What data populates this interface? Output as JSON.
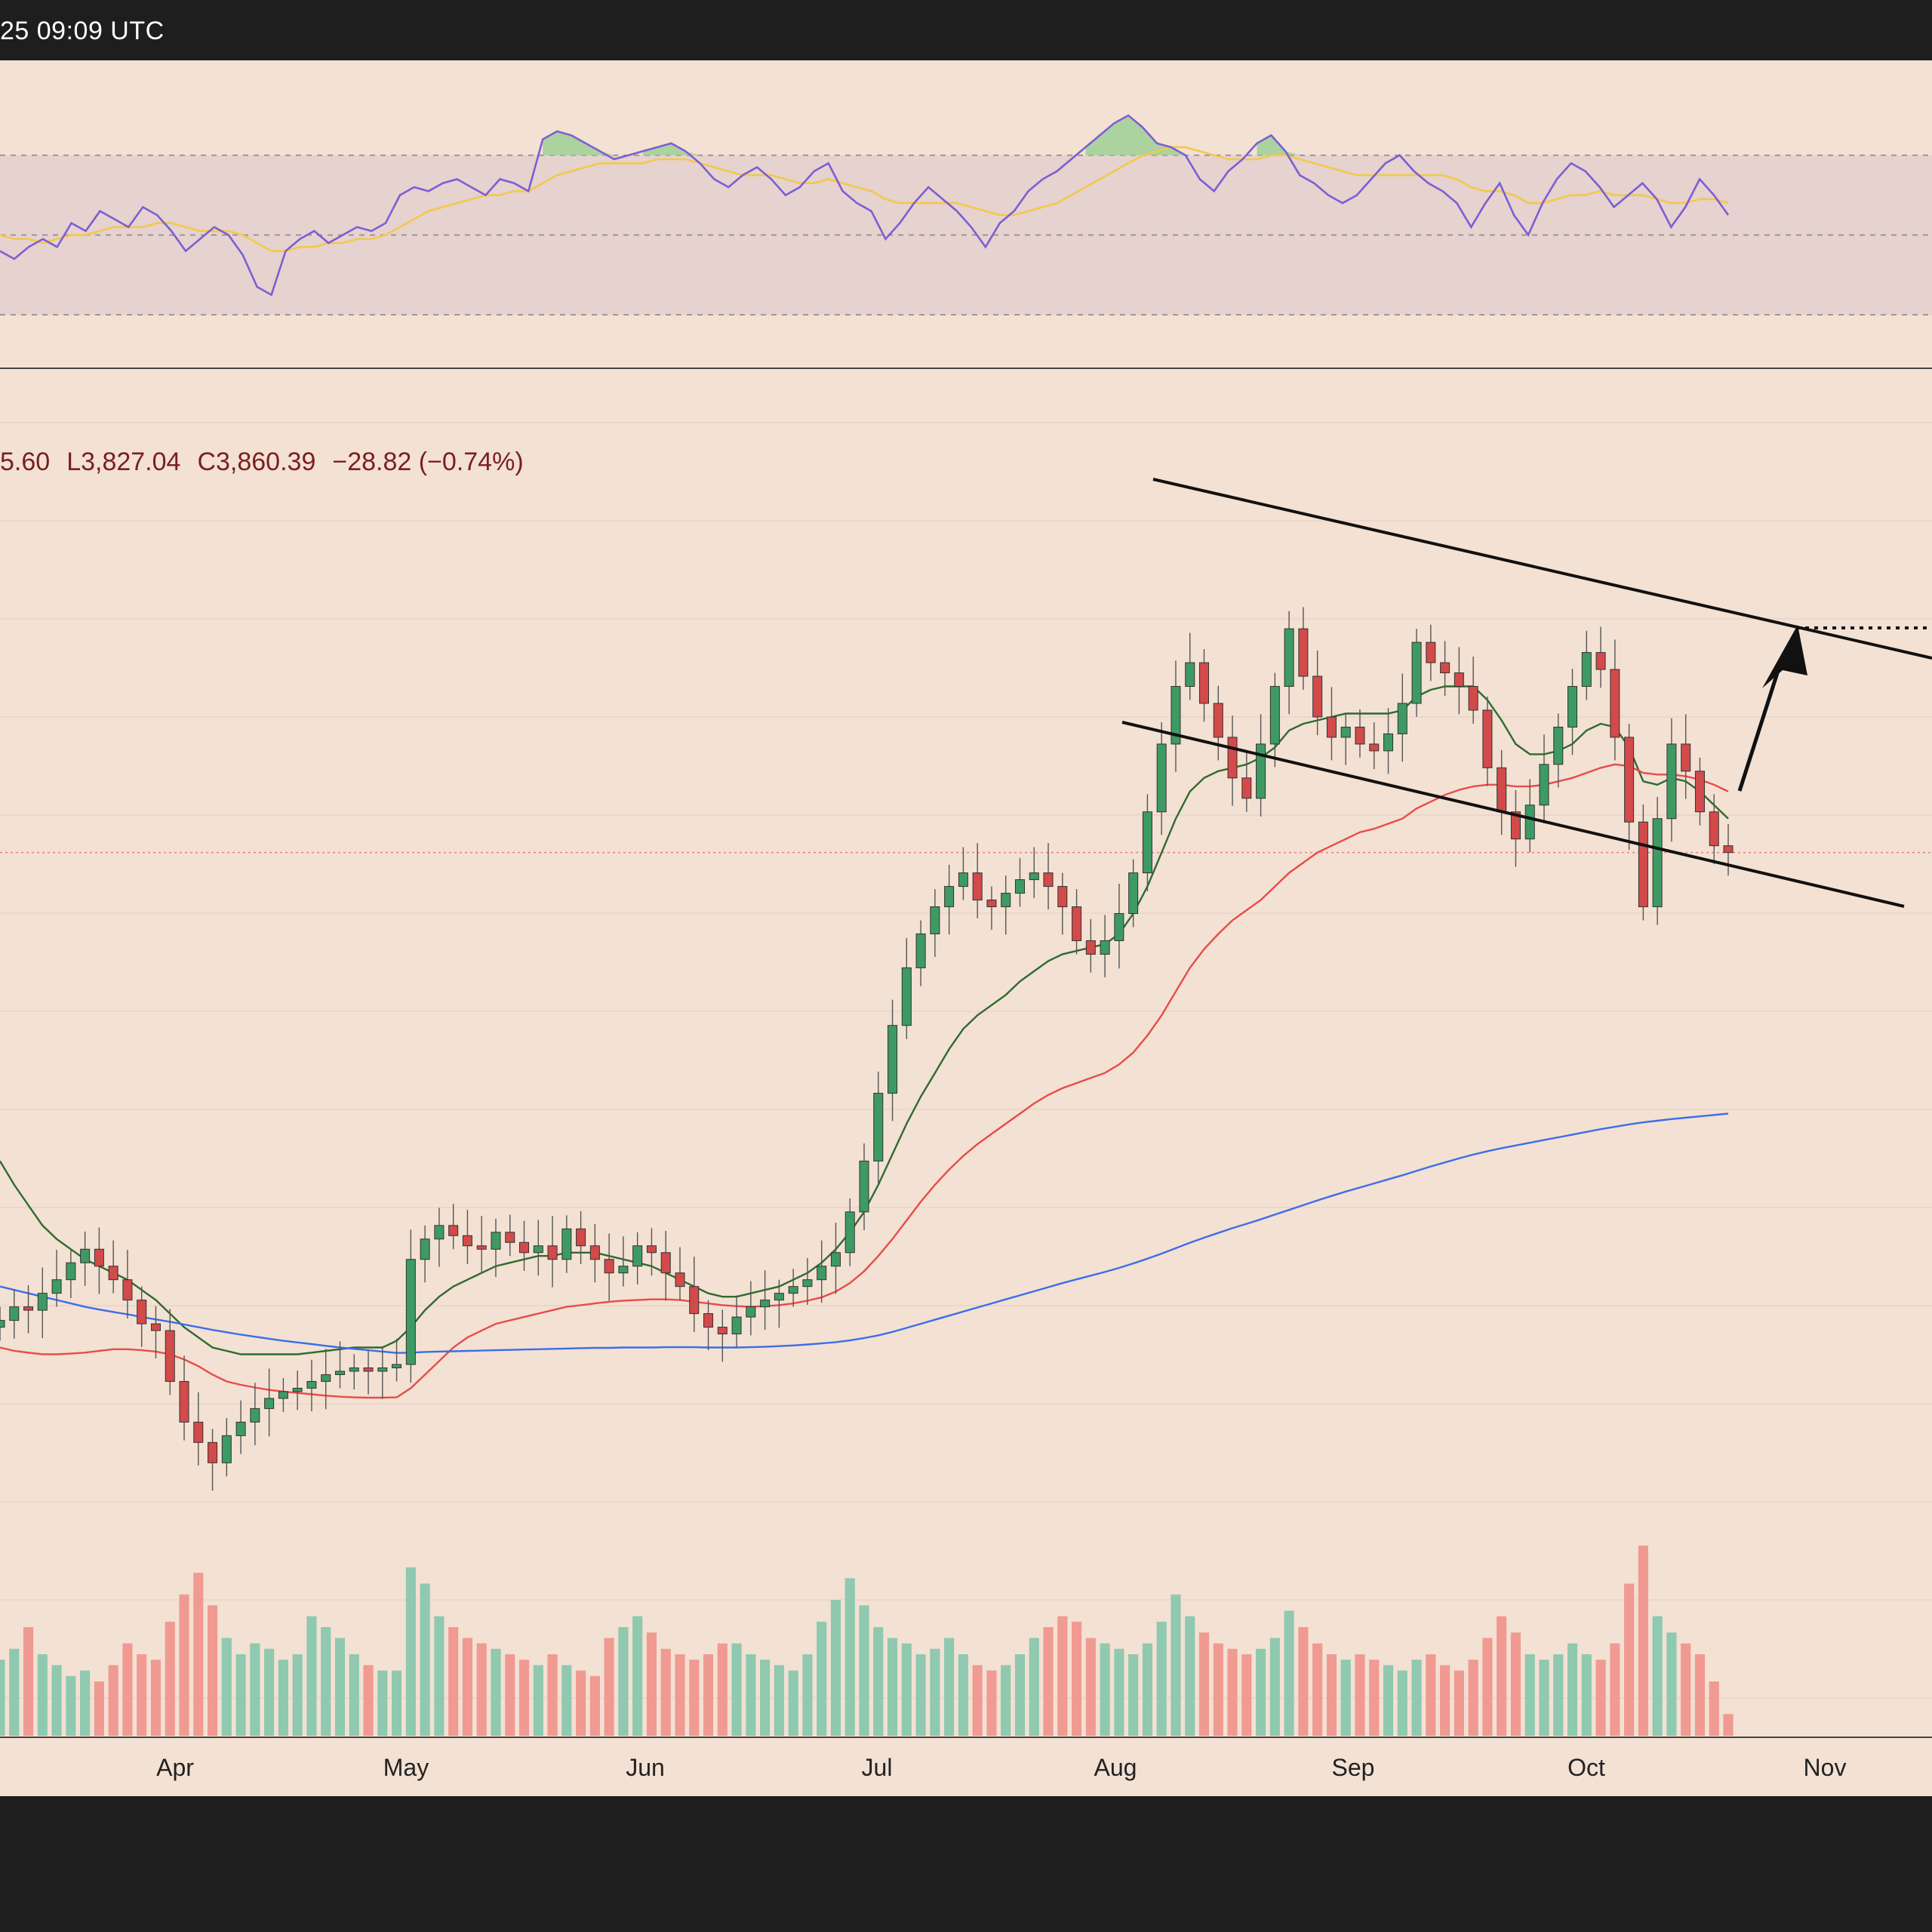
{
  "header": {
    "timestamp_fragment": "25 09:09 UTC"
  },
  "ohlc": {
    "open_fragment": "5.60",
    "low": "L3,827.04",
    "close": "C3,860.39",
    "change": "−28.82 (−0.74%)"
  },
  "colors": {
    "panel_bg": "#f3e1d3",
    "rsi_band": "#e6d2cf",
    "rsi_line": "#7b5fd3",
    "rsi_ma": "#f2c94c",
    "ema20": "#2e6b2e",
    "ema50": "#e84b4b",
    "ema200": "#3b6ee8",
    "up_candle": "#3e9a63",
    "down_candle": "#d24a4a",
    "vol_up": "#8ec9b0",
    "vol_down": "#f09a92"
  },
  "chart_data": [
    {
      "type": "line",
      "name": "rsi_panel",
      "series": [
        {
          "values": [
            46,
            44,
            47,
            49,
            47,
            53,
            51,
            56,
            54,
            52,
            57,
            55,
            51,
            46,
            49,
            52,
            50,
            45,
            37,
            35,
            46,
            49,
            51,
            48,
            50,
            52,
            51,
            53,
            60,
            62,
            61,
            63,
            64,
            62,
            60,
            64,
            63,
            61,
            74,
            76,
            75,
            73,
            71,
            69,
            70,
            71,
            72,
            73,
            71,
            68,
            64,
            62,
            65,
            67,
            64,
            60,
            62,
            66,
            68,
            61,
            58,
            56,
            49,
            53,
            58,
            62,
            59,
            56,
            52,
            47,
            53,
            56,
            61,
            64,
            66,
            69,
            72,
            75,
            78,
            80,
            77,
            73,
            72,
            70,
            64,
            61,
            66,
            69,
            73,
            75,
            71,
            65,
            63,
            60,
            58,
            60,
            64,
            68,
            70,
            66,
            63,
            61,
            58,
            52,
            58,
            63,
            55,
            50,
            58,
            64,
            68,
            66,
            62,
            57,
            60,
            63,
            59,
            52,
            57,
            64,
            60,
            55
          ]
        },
        {
          "values": [
            50,
            49,
            49,
            48,
            49,
            50,
            50,
            51,
            52,
            52,
            52,
            53,
            53,
            52,
            51,
            51,
            51,
            50,
            48,
            46,
            46,
            47,
            47,
            48,
            48,
            49,
            49,
            50,
            52,
            54,
            56,
            57,
            58,
            59,
            60,
            60,
            61,
            61,
            63,
            65,
            66,
            67,
            68,
            68,
            68,
            68,
            69,
            69,
            69,
            68,
            67,
            66,
            65,
            65,
            65,
            64,
            63,
            63,
            64,
            63,
            62,
            61,
            59,
            58,
            58,
            58,
            58,
            58,
            57,
            56,
            55,
            55,
            56,
            57,
            58,
            60,
            62,
            64,
            66,
            68,
            70,
            71,
            72,
            72,
            71,
            70,
            69,
            69,
            69,
            70,
            70,
            69,
            68,
            67,
            66,
            65,
            65,
            65,
            65,
            65,
            65,
            65,
            64,
            62,
            61,
            61,
            60,
            58,
            58,
            59,
            60,
            60,
            61,
            60,
            60,
            60,
            59,
            58,
            58,
            59,
            59,
            58
          ]
        }
      ],
      "levels": [
        70,
        50,
        30
      ]
    },
    {
      "type": "candlestick",
      "name": "price_panel",
      "x_labels": [
        "Apr",
        "May",
        "Jun",
        "Jul",
        "Aug",
        "Sep",
        "Oct",
        "Nov"
      ],
      "close_values": [
        2480,
        2520,
        2510,
        2560,
        2600,
        2650,
        2690,
        2640,
        2600,
        2540,
        2470,
        2450,
        2300,
        2180,
        2120,
        2060,
        2140,
        2180,
        2220,
        2250,
        2270,
        2280,
        2300,
        2320,
        2330,
        2340,
        2330,
        2340,
        2350,
        2660,
        2720,
        2760,
        2730,
        2700,
        2690,
        2740,
        2710,
        2680,
        2700,
        2660,
        2750,
        2700,
        2660,
        2620,
        2640,
        2700,
        2680,
        2620,
        2580,
        2500,
        2460,
        2440,
        2490,
        2520,
        2540,
        2560,
        2580,
        2600,
        2640,
        2680,
        2800,
        2950,
        3150,
        3350,
        3520,
        3620,
        3700,
        3760,
        3800,
        3720,
        3700,
        3740,
        3780,
        3800,
        3760,
        3700,
        3600,
        3560,
        3600,
        3680,
        3800,
        3980,
        4180,
        4350,
        4420,
        4300,
        4200,
        4080,
        4020,
        4180,
        4350,
        4520,
        4380,
        4260,
        4200,
        4230,
        4180,
        4160,
        4210,
        4300,
        4480,
        4420,
        4390,
        4350,
        4280,
        4110,
        3980,
        3900,
        4000,
        4120,
        4230,
        4350,
        4450,
        4400,
        4200,
        3950,
        3700,
        3960,
        4180,
        4100,
        3980,
        3880,
        3860
      ],
      "series": [
        {
          "name": "",
          "values": [
            2950,
            2880,
            2820,
            2760,
            2720,
            2690,
            2660,
            2640,
            2620,
            2600,
            2570,
            2540,
            2500,
            2460,
            2430,
            2400,
            2390,
            2380,
            2380,
            2380,
            2380,
            2380,
            2385,
            2390,
            2395,
            2400,
            2400,
            2400,
            2420,
            2460,
            2510,
            2550,
            2580,
            2600,
            2620,
            2640,
            2650,
            2660,
            2670,
            2670,
            2680,
            2680,
            2680,
            2670,
            2660,
            2650,
            2640,
            2620,
            2600,
            2580,
            2560,
            2550,
            2550,
            2560,
            2570,
            2580,
            2600,
            2620,
            2650,
            2690,
            2740,
            2800,
            2880,
            2970,
            3060,
            3140,
            3210,
            3280,
            3340,
            3380,
            3410,
            3440,
            3480,
            3510,
            3540,
            3560,
            3570,
            3580,
            3590,
            3620,
            3680,
            3760,
            3860,
            3960,
            4040,
            4080,
            4100,
            4110,
            4120,
            4140,
            4170,
            4220,
            4240,
            4250,
            4260,
            4270,
            4270,
            4270,
            4270,
            4280,
            4320,
            4340,
            4350,
            4350,
            4350,
            4310,
            4250,
            4180,
            4150,
            4150,
            4160,
            4180,
            4220,
            4240,
            4230,
            4170,
            4070,
            4060,
            4080,
            4070,
            4040,
            4000,
            3960
          ]
        },
        {
          "name": "",
          "values": [
            2400,
            2390,
            2385,
            2380,
            2380,
            2382,
            2385,
            2390,
            2395,
            2395,
            2392,
            2388,
            2380,
            2365,
            2345,
            2320,
            2300,
            2290,
            2282,
            2275,
            2270,
            2266,
            2262,
            2258,
            2255,
            2253,
            2252,
            2252,
            2253,
            2280,
            2320,
            2360,
            2400,
            2430,
            2450,
            2470,
            2480,
            2490,
            2500,
            2510,
            2520,
            2525,
            2530,
            2535,
            2538,
            2540,
            2542,
            2542,
            2540,
            2535,
            2530,
            2525,
            2522,
            2520,
            2522,
            2525,
            2530,
            2538,
            2548,
            2565,
            2590,
            2625,
            2670,
            2720,
            2775,
            2830,
            2880,
            2925,
            2965,
            3000,
            3030,
            3060,
            3090,
            3120,
            3145,
            3165,
            3180,
            3195,
            3210,
            3235,
            3270,
            3320,
            3380,
            3450,
            3520,
            3575,
            3620,
            3660,
            3690,
            3720,
            3760,
            3800,
            3830,
            3860,
            3880,
            3900,
            3920,
            3930,
            3945,
            3960,
            3990,
            4010,
            4030,
            4045,
            4055,
            4060,
            4060,
            4055,
            4055,
            4060,
            4070,
            4080,
            4095,
            4110,
            4120,
            4115,
            4095,
            4090,
            4090,
            4085,
            4075,
            4060,
            4040
          ]
        },
        {
          "name": "",
          "values": [
            2580,
            2570,
            2560,
            2550,
            2540,
            2530,
            2520,
            2512,
            2505,
            2498,
            2490,
            2483,
            2476,
            2468,
            2460,
            2452,
            2445,
            2438,
            2432,
            2426,
            2420,
            2415,
            2410,
            2405,
            2400,
            2396,
            2392,
            2388,
            2384,
            2385,
            2387,
            2388,
            2389,
            2390,
            2391,
            2392,
            2393,
            2394,
            2395,
            2396,
            2397,
            2398,
            2399,
            2399,
            2400,
            2400,
            2400,
            2401,
            2401,
            2401,
            2400,
            2400,
            2400,
            2401,
            2402,
            2404,
            2406,
            2409,
            2412,
            2416,
            2421,
            2428,
            2436,
            2446,
            2458,
            2470,
            2482,
            2494,
            2506,
            2518,
            2530,
            2542,
            2554,
            2566,
            2578,
            2590,
            2601,
            2612,
            2623,
            2635,
            2648,
            2662,
            2677,
            2693,
            2709,
            2724,
            2738,
            2752,
            2765,
            2778,
            2792,
            2806,
            2820,
            2834,
            2847,
            2860,
            2872,
            2884,
            2896,
            2908,
            2921,
            2934,
            2946,
            2958,
            2969,
            2979,
            2988,
            2996,
            3004,
            3012,
            3020,
            3028,
            3036,
            3044,
            3051,
            3058,
            3064,
            3069,
            3074,
            3078,
            3082,
            3086,
            3090
          ]
        }
      ],
      "volume": [
        28,
        32,
        40,
        30,
        26,
        22,
        24,
        20,
        26,
        34,
        30,
        28,
        42,
        52,
        60,
        48,
        36,
        30,
        34,
        32,
        28,
        30,
        44,
        40,
        36,
        30,
        26,
        24,
        24,
        62,
        56,
        44,
        40,
        36,
        34,
        32,
        30,
        28,
        26,
        30,
        26,
        24,
        22,
        36,
        40,
        44,
        38,
        32,
        30,
        28,
        30,
        34,
        34,
        30,
        28,
        26,
        24,
        30,
        42,
        50,
        58,
        48,
        40,
        36,
        34,
        30,
        32,
        36,
        30,
        26,
        24,
        26,
        30,
        36,
        40,
        44,
        42,
        36,
        34,
        32,
        30,
        34,
        42,
        52,
        44,
        38,
        34,
        32,
        30,
        32,
        36,
        46,
        40,
        34,
        30,
        28,
        30,
        28,
        26,
        24,
        28,
        30,
        26,
        24,
        28,
        36,
        44,
        38,
        30,
        28,
        30,
        34,
        30,
        28,
        34,
        56,
        70,
        44,
        38,
        34,
        30,
        20,
        8
      ]
    }
  ]
}
